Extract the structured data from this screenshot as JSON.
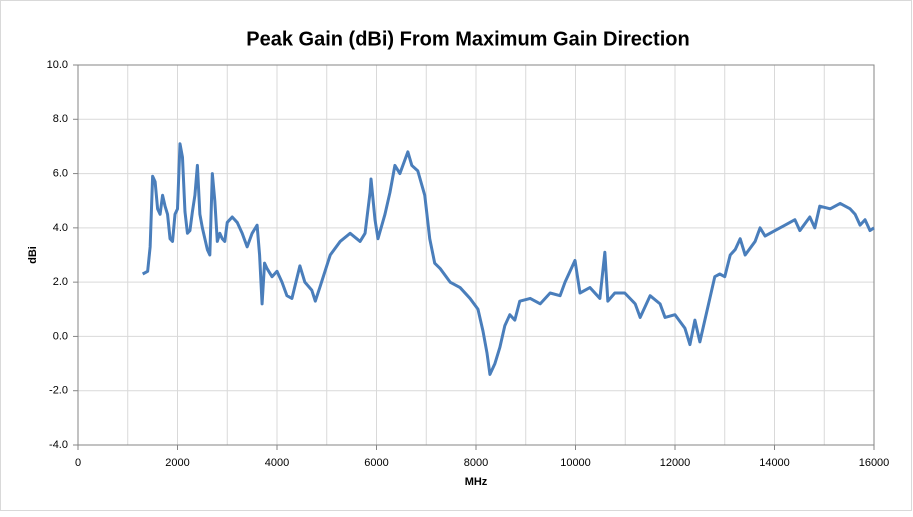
{
  "chart_data": {
    "type": "line",
    "title": "Peak Gain (dBi) From Maximum Gain Direction",
    "x_label": "MHz",
    "y_label": "dBi",
    "xlim": [
      0,
      16000
    ],
    "xticks": [
      0,
      2000,
      4000,
      6000,
      8000,
      10000,
      12000,
      14000,
      16000
    ],
    "ylim": [
      -4,
      10
    ],
    "yticks": [
      {
        "value": -4,
        "label": "-4.0"
      },
      {
        "value": -2,
        "label": "-2.0"
      },
      {
        "value": 0,
        "label": "0.0"
      },
      {
        "value": 2,
        "label": "2.0"
      },
      {
        "value": 4,
        "label": "4.0"
      },
      {
        "value": 6,
        "label": "6.0"
      },
      {
        "value": 8,
        "label": "8.0"
      },
      {
        "value": 10,
        "label": "10.0"
      }
    ],
    "grid": true,
    "series": [
      {
        "name": "Peak Gain",
        "color": "#4a7ebb",
        "x": [
          1300,
          1400,
          1450,
          1500,
          1550,
          1600,
          1650,
          1700,
          1750,
          1800,
          1850,
          1900,
          1950,
          2000,
          2050,
          2100,
          2150,
          2200,
          2250,
          2300,
          2350,
          2400,
          2450,
          2500,
          2550,
          2600,
          2650,
          2700,
          2750,
          2800,
          2850,
          2900,
          2950,
          3000,
          3100,
          3200,
          3300,
          3400,
          3500,
          3600,
          3650,
          3700,
          3750,
          3800,
          3900,
          4000,
          4100,
          4200,
          4300,
          4460,
          4560,
          4700,
          4770,
          4860,
          5070,
          5270,
          5470,
          5670,
          5770,
          5870,
          5890,
          5970,
          6030,
          6170,
          6270,
          6370,
          6470,
          6570,
          6630,
          6710,
          6830,
          6970,
          7070,
          7170,
          7280,
          7480,
          7680,
          7880,
          8040,
          8140,
          8220,
          8280,
          8380,
          8480,
          8580,
          8680,
          8780,
          8880,
          9090,
          9290,
          9490,
          9690,
          9790,
          9890,
          9990,
          10090,
          10290,
          10490,
          10590,
          10650,
          10790,
          10990,
          11200,
          11300,
          11500,
          11700,
          11800,
          12000,
          12200,
          12300,
          12400,
          12500,
          12600,
          12700,
          12800,
          12900,
          13000,
          13110,
          13210,
          13310,
          13410,
          13610,
          13710,
          13810,
          14010,
          14210,
          14410,
          14510,
          14710,
          14810,
          14910,
          15120,
          15320,
          15520,
          15620,
          15720,
          15820,
          15920,
          16000
        ],
        "values": [
          2.3,
          2.4,
          3.3,
          5.9,
          5.7,
          4.7,
          4.5,
          5.2,
          4.8,
          4.5,
          3.6,
          3.5,
          4.5,
          4.7,
          7.1,
          6.6,
          4.6,
          3.8,
          3.9,
          4.6,
          5.2,
          6.3,
          4.5,
          4.0,
          3.6,
          3.2,
          3.0,
          6.0,
          5.0,
          3.5,
          3.8,
          3.6,
          3.5,
          4.2,
          4.4,
          4.2,
          3.8,
          3.3,
          3.8,
          4.1,
          3.0,
          1.2,
          2.7,
          2.5,
          2.2,
          2.4,
          2.0,
          1.5,
          1.4,
          2.6,
          2.0,
          1.7,
          1.3,
          1.8,
          3.0,
          3.5,
          3.8,
          3.5,
          3.8,
          5.3,
          5.8,
          4.3,
          3.6,
          4.5,
          5.3,
          6.3,
          6.0,
          6.5,
          6.8,
          6.3,
          6.1,
          5.2,
          3.6,
          2.7,
          2.5,
          2.0,
          1.8,
          1.4,
          1.0,
          0.2,
          -0.6,
          -1.4,
          -1.0,
          -0.4,
          0.4,
          0.8,
          0.6,
          1.3,
          1.4,
          1.2,
          1.6,
          1.5,
          2.0,
          2.4,
          2.8,
          1.6,
          1.8,
          1.4,
          3.1,
          1.3,
          1.6,
          1.6,
          1.2,
          0.7,
          1.5,
          1.2,
          0.7,
          0.8,
          0.3,
          -0.3,
          0.6,
          -0.2,
          0.6,
          1.4,
          2.2,
          2.3,
          2.2,
          3.0,
          3.2,
          3.6,
          3.0,
          3.5,
          4.0,
          3.7,
          3.9,
          4.1,
          4.3,
          3.9,
          4.4,
          4.0,
          4.8,
          4.7,
          4.9,
          4.7,
          4.5,
          4.1,
          4.3,
          3.9,
          4.0
        ]
      }
    ]
  }
}
